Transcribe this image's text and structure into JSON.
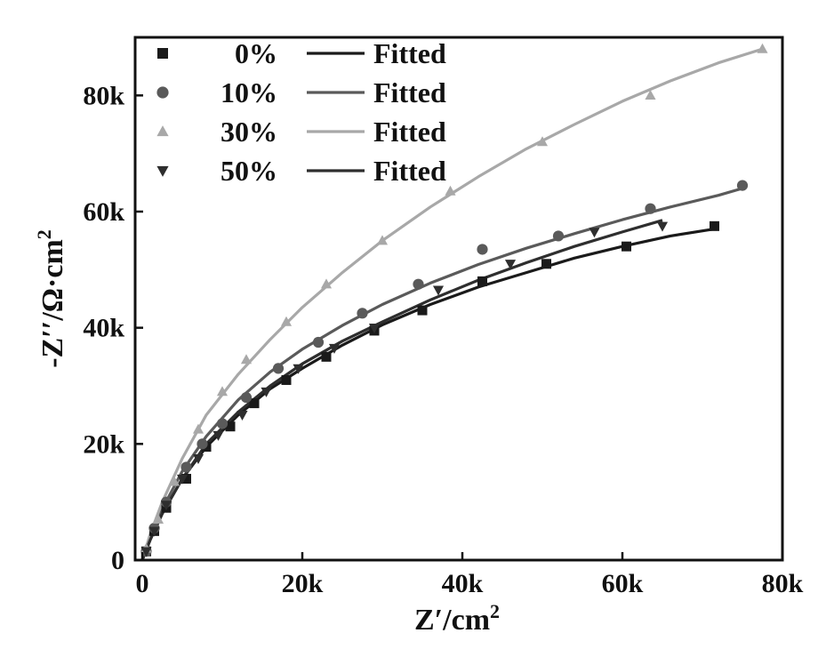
{
  "chart_data": {
    "type": "scatter",
    "title": "",
    "xlabel": "Z′/cm",
    "xlabel_sup": "2",
    "ylabel": "-Z′′/Ω·cm",
    "ylabel_sup": "2",
    "xlim": [
      0,
      80000
    ],
    "ylim": [
      0,
      90000
    ],
    "xticks": [
      0,
      20000,
      40000,
      60000,
      80000
    ],
    "xtick_labels": [
      "0",
      "20k",
      "40k",
      "60k",
      "80k"
    ],
    "yticks": [
      0,
      20000,
      40000,
      60000,
      80000
    ],
    "ytick_labels": [
      "0",
      "20k",
      "40k",
      "60k",
      "80k"
    ],
    "grid": false,
    "legend_position": "top-left",
    "series": [
      {
        "name": "0%",
        "fit_name": "Fitted",
        "marker": "square",
        "color": "#1a1a1a",
        "x": [
          500,
          1500,
          3000,
          5500,
          8000,
          11000,
          14000,
          18000,
          23000,
          29000,
          35000,
          42500,
          50500,
          60500,
          71500
        ],
        "y": [
          1500,
          5000,
          9000,
          14000,
          19500,
          23000,
          27000,
          31000,
          35000,
          39500,
          43000,
          48000,
          51000,
          54000,
          57500
        ],
        "fit_x": [
          0,
          1000,
          2500,
          5000,
          8000,
          12000,
          16000,
          20000,
          25000,
          30000,
          36000,
          42000,
          48000,
          54000,
          60000,
          66000,
          71500
        ],
        "fit_y": [
          0,
          3500,
          8000,
          14000,
          19500,
          25000,
          29500,
          33000,
          37000,
          40500,
          44000,
          47000,
          49500,
          52000,
          54000,
          55800,
          57000
        ]
      },
      {
        "name": "10%",
        "fit_name": "Fitted",
        "marker": "circle",
        "color": "#5a5a5a",
        "x": [
          500,
          1500,
          3000,
          5500,
          7500,
          10000,
          13000,
          17000,
          22000,
          27500,
          34500,
          42500,
          52000,
          63500,
          75000
        ],
        "y": [
          1500,
          5500,
          10000,
          16000,
          20000,
          23500,
          28000,
          33000,
          37500,
          42500,
          47500,
          53500,
          55800,
          60500,
          64500
        ],
        "fit_x": [
          0,
          1000,
          2500,
          5000,
          8000,
          12000,
          16000,
          20000,
          25000,
          30000,
          36000,
          42000,
          48000,
          54000,
          60000,
          66000,
          72000,
          75000
        ],
        "fit_y": [
          0,
          4000,
          8800,
          15300,
          21300,
          27600,
          32400,
          36300,
          40400,
          44000,
          47700,
          50900,
          53700,
          56200,
          58600,
          60800,
          62800,
          64000
        ]
      },
      {
        "name": "30%",
        "fit_name": "Fitted",
        "marker": "triangle-up",
        "color": "#a8a8a8",
        "x": [
          500,
          2000,
          4000,
          7000,
          10000,
          13000,
          18000,
          23000,
          30000,
          38500,
          50000,
          63500,
          77500
        ],
        "y": [
          2000,
          7000,
          13500,
          22500,
          29000,
          34500,
          41000,
          47500,
          55000,
          63500,
          72000,
          80000,
          88000
        ],
        "fit_x": [
          0,
          1000,
          2500,
          5000,
          8000,
          12000,
          16000,
          20000,
          25000,
          30000,
          36000,
          42000,
          48000,
          54000,
          60000,
          66000,
          72000,
          77500
        ],
        "fit_y": [
          0,
          4500,
          10000,
          17500,
          25000,
          32000,
          38000,
          43500,
          49500,
          55000,
          60800,
          66000,
          70800,
          75000,
          79000,
          82500,
          85600,
          88000
        ]
      },
      {
        "name": "50%",
        "fit_name": "Fitted",
        "marker": "triangle-down",
        "color": "#2e2e2e",
        "x": [
          500,
          1500,
          3000,
          5000,
          7000,
          9500,
          12500,
          15500,
          19500,
          24000,
          29000,
          37000,
          46000,
          56500,
          65000
        ],
        "y": [
          1500,
          5000,
          9500,
          14000,
          17500,
          21500,
          25000,
          29000,
          33000,
          36500,
          40000,
          46500,
          51000,
          56500,
          57500
        ],
        "fit_x": [
          0,
          1000,
          2500,
          5000,
          8000,
          12000,
          16000,
          20000,
          25000,
          30000,
          36000,
          42000,
          48000,
          54000,
          60000,
          65000
        ],
        "fit_y": [
          0,
          3500,
          8000,
          14000,
          20000,
          25500,
          30000,
          33800,
          37700,
          41000,
          44800,
          48200,
          51200,
          54000,
          56500,
          58500
        ]
      }
    ]
  }
}
